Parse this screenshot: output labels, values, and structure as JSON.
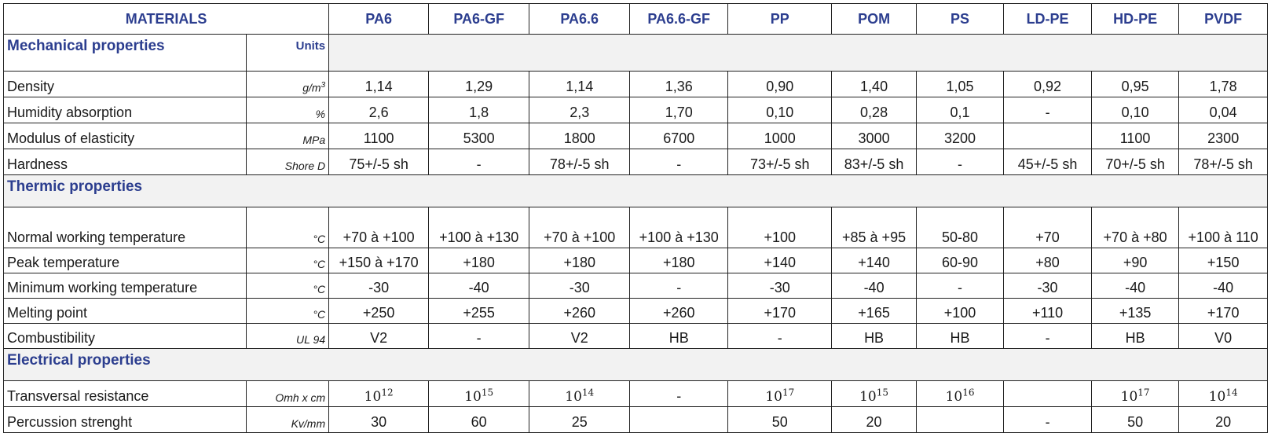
{
  "header": {
    "title": "MATERIALS",
    "materials": [
      "PA6",
      "PA6-GF",
      "PA6.6",
      "PA6.6-GF",
      "PP",
      "POM",
      "PS",
      "LD-PE",
      "HD-PE",
      "PVDF"
    ]
  },
  "sections": {
    "mechanical": {
      "label": "Mechanical properties",
      "units_label": "Units",
      "rows": [
        {
          "name": "Density",
          "unit": "g/m",
          "unit_sup": "3",
          "values": [
            "1,14",
            "1,29",
            "1,14",
            "1,36",
            "0,90",
            "1,40",
            "1,05",
            "0,92",
            "0,95",
            "1,78"
          ]
        },
        {
          "name": "Humidity absorption",
          "unit": "%",
          "values": [
            "2,6",
            "1,8",
            "2,3",
            "1,70",
            "0,10",
            "0,28",
            "0,1",
            "-",
            "0,10",
            "0,04"
          ]
        },
        {
          "name": "Modulus of elasticity",
          "unit": "MPa",
          "values": [
            "1100",
            "5300",
            "1800",
            "6700",
            "1000",
            "3000",
            "3200",
            "",
            "1100",
            "2300"
          ]
        },
        {
          "name": "Hardness",
          "unit": "Shore D",
          "values": [
            "75+/-5 sh",
            "-",
            "78+/-5 sh",
            "-",
            "73+/-5 sh",
            "83+/-5 sh",
            "-",
            "45+/-5 sh",
            "70+/-5 sh",
            "78+/-5 sh"
          ]
        }
      ]
    },
    "thermic": {
      "label": "Thermic properties",
      "rows": [
        {
          "name": "Normal working temperature",
          "unit": "°C",
          "values": [
            "+70 à +100",
            "+100 à +130",
            "+70 à +100",
            "+100 à +130",
            "+100",
            "+85 à +95",
            "50-80",
            "+70",
            "+70 à +80",
            "+100 à 110"
          ]
        },
        {
          "name": "Peak temperature",
          "unit": "°C",
          "values": [
            "+150 à +170",
            "+180",
            "+180",
            "+180",
            "+140",
            "+140",
            "60-90",
            "+80",
            "+90",
            "+150"
          ]
        },
        {
          "name": "Minimum working temperature",
          "unit": "°C",
          "values": [
            "-30",
            "-40",
            "-30",
            "-",
            "-30",
            "-40",
            "-",
            "-30",
            "-40",
            "-40"
          ]
        },
        {
          "name": "Melting point",
          "unit": "°C",
          "values": [
            "+250",
            "+255",
            "+260",
            "+260",
            "+170",
            "+165",
            "+100",
            "+110",
            "+135",
            "+170"
          ]
        },
        {
          "name": "Combustibility",
          "unit": "UL 94",
          "values": [
            "V2",
            "-",
            "V2",
            "HB",
            "-",
            "HB",
            "HB",
            "-",
            "HB",
            "V0"
          ]
        }
      ]
    },
    "electrical": {
      "label": "Electrical properties",
      "rows": [
        {
          "name": "Transversal resistance",
          "unit": "Omh x cm",
          "base": "10",
          "exponents": [
            "12",
            "15",
            "14",
            "",
            "17",
            "15",
            "16",
            "",
            "17",
            "14"
          ],
          "fallback": [
            "",
            "",
            "",
            "-",
            "",
            "",
            "",
            "",
            "",
            ""
          ]
        },
        {
          "name": "Percussion strenght",
          "unit": "Kv/mm",
          "values": [
            "30",
            "60",
            "25",
            "",
            "50",
            "20",
            "",
            "-",
            "50",
            "20"
          ]
        }
      ]
    }
  },
  "colors": {
    "header_text": "#2c3e8f",
    "section_bg": "#f2f2f2",
    "border": "#222222"
  }
}
